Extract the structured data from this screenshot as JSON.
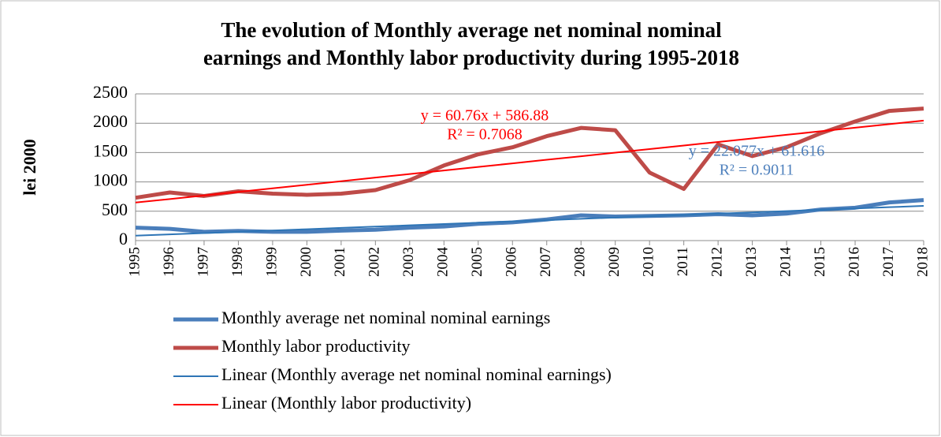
{
  "chart_data": {
    "type": "line",
    "title": [
      "The evolution of Monthly average net nominal nominal",
      "earnings and Monthly labor productivity during 1995-2018"
    ],
    "y_label": "lei 2000",
    "categories": [
      "1995",
      "1996",
      "1997",
      "1998",
      "1999",
      "2000",
      "2001",
      "2002",
      "2003",
      "2004",
      "2005",
      "2006",
      "2007",
      "2008",
      "2009",
      "2010",
      "2011",
      "2012",
      "2013",
      "2014",
      "2015",
      "2016",
      "2017",
      "2018"
    ],
    "series": [
      {
        "name": "Monthly average net nominal nominal earnings",
        "color": "#4a7ebb",
        "trendline": false,
        "values": [
          220,
          200,
          150,
          165,
          150,
          150,
          170,
          185,
          220,
          240,
          285,
          310,
          360,
          430,
          410,
          420,
          430,
          450,
          430,
          460,
          530,
          560,
          650,
          690
        ]
      },
      {
        "name": "Monthly labor productivity",
        "color": "#be4b48",
        "trendline": false,
        "values": [
          730,
          820,
          760,
          840,
          800,
          780,
          800,
          860,
          1030,
          1280,
          1470,
          1590,
          1780,
          1920,
          1880,
          1160,
          880,
          1640,
          1440,
          1590,
          1830,
          2030,
          2210,
          2250
        ]
      },
      {
        "name": "Linear (Monthly average net nominal nominal earnings)",
        "color": "#2e75b6",
        "trendline": true,
        "values": [
          84,
          106,
          128,
          150,
          172,
          194,
          216,
          238,
          260,
          282,
          304,
          326,
          348,
          371,
          393,
          415,
          437,
          459,
          481,
          503,
          525,
          547,
          569,
          591
        ]
      },
      {
        "name": "Linear (Monthly labor productivity)",
        "color": "#ff0000",
        "trendline": true,
        "values": [
          648,
          708,
          769,
          830,
          891,
          951,
          1012,
          1073,
          1134,
          1194,
          1255,
          1316,
          1377,
          1437,
          1498,
          1559,
          1620,
          1680,
          1741,
          1802,
          1863,
          1923,
          1984,
          2045
        ]
      }
    ],
    "annotations": [
      {
        "lines": [
          "y = 60.76x + 586.88",
          "R² = 0.7068"
        ],
        "color": "#ff0000"
      },
      {
        "lines": [
          "y = 22.077x + 61.616",
          "R² = 0.9011"
        ],
        "color": "#4f81bd"
      }
    ],
    "ylim": [
      0,
      2500
    ],
    "yticks": [
      0,
      500,
      1000,
      1500,
      2000,
      2500
    ],
    "grid": true
  }
}
